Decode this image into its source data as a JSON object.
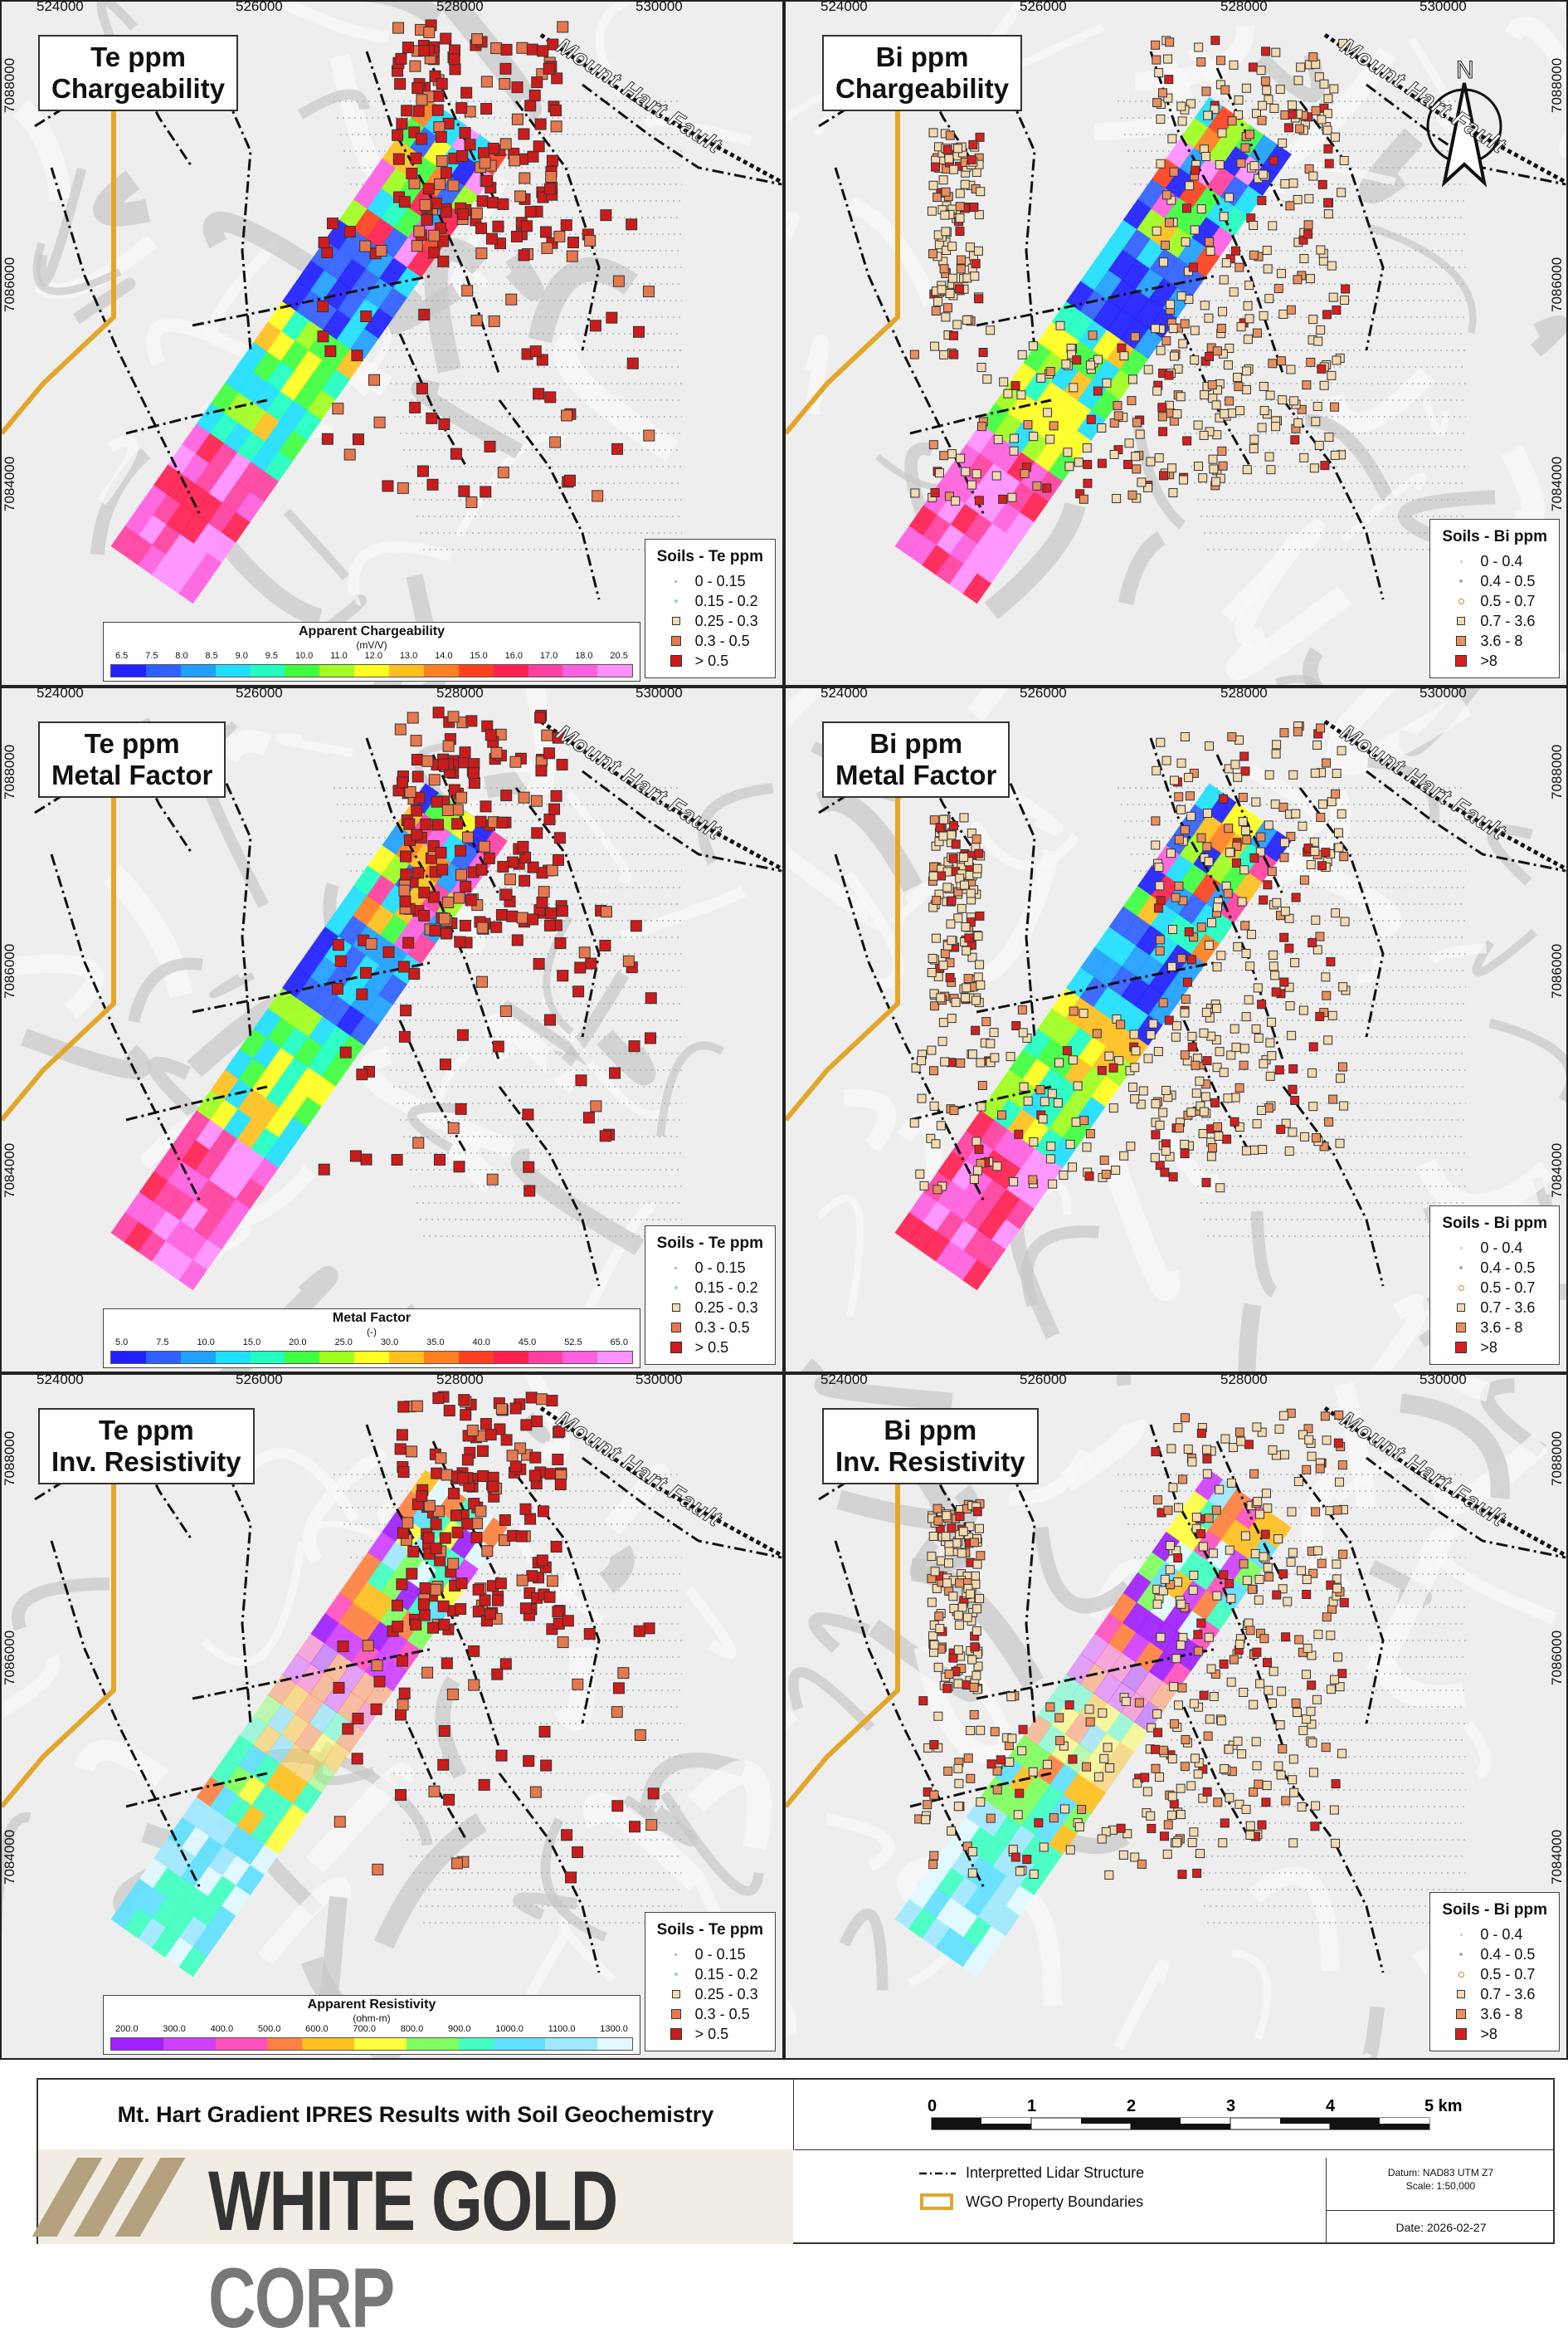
{
  "colors": {
    "accent_gold": "#e2a72a",
    "hillshade": "#dcdcdc",
    "te_dot": "#cc1b1b",
    "bi_dot": "#e8c394"
  },
  "axes": {
    "x_ticks": [
      "524000",
      "526000",
      "528000",
      "530000"
    ],
    "y_ticks": [
      "7088000",
      "7086000",
      "7084000"
    ]
  },
  "fault_label": "Mount Hart Fault",
  "north_label": "N",
  "panels": [
    {
      "title_line1": "Te ppm",
      "title_line2": "Chargeability",
      "element": "Te",
      "legend_title": "Soils - Te ppm",
      "legend_items": [
        "0 - 0.15",
        "0.15 - 0.2",
        "0.25 - 0.3",
        "0.3 - 0.5",
        "> 0.5"
      ],
      "colorbar": {
        "title": "Apparent Chargeability",
        "unit": "(mV/V)",
        "ticks": [
          "6.5",
          "7.5",
          "8.0",
          "8.5",
          "9.0",
          "9.5",
          "10.0",
          "11.0",
          "12.0",
          "13.0",
          "14.0",
          "15.0",
          "16.0",
          "17.0",
          "18.0",
          "20.5"
        ]
      }
    },
    {
      "title_line1": "Bi ppm",
      "title_line2": "Chargeability",
      "element": "Bi",
      "legend_title": "Soils - Bi ppm",
      "legend_items": [
        "0 - 0.4",
        "0.4 - 0.5",
        "0.5 - 0.7",
        "0.7 - 3.6",
        "3.6 - 8",
        ">8"
      ]
    },
    {
      "title_line1": "Te ppm",
      "title_line2": "Metal Factor",
      "element": "Te",
      "legend_title": "Soils - Te ppm",
      "legend_items": [
        "0 - 0.15",
        "0.15 - 0.2",
        "0.25 - 0.3",
        "0.3 - 0.5",
        "> 0.5"
      ],
      "colorbar": {
        "title": "Metal Factor",
        "unit": "(-)",
        "ticks": [
          "5.0",
          "7.5",
          "10.0",
          "15.0",
          "20.0",
          "25.0",
          "30.0",
          "35.0",
          "40.0",
          "45.0",
          "52.5",
          "65.0"
        ]
      }
    },
    {
      "title_line1": "Bi ppm",
      "title_line2": "Metal Factor",
      "element": "Bi",
      "legend_title": "Soils - Bi ppm",
      "legend_items": [
        "0 - 0.4",
        "0.4 - 0.5",
        "0.5 - 0.7",
        "0.7 - 3.6",
        "3.6 - 8",
        ">8"
      ]
    },
    {
      "title_line1": "Te ppm",
      "title_line2": "Inv. Resistivity",
      "element": "Te",
      "legend_title": "Soils - Te ppm",
      "legend_items": [
        "0 - 0.15",
        "0.15 - 0.2",
        "0.25 - 0.3",
        "0.3 - 0.5",
        "> 0.5"
      ],
      "colorbar": {
        "title": "Apparent Resistivity",
        "unit": "(ohm-m)",
        "ticks": [
          "200.0",
          "300.0",
          "400.0",
          "500.0",
          "600.0",
          "700.0",
          "800.0",
          "900.0",
          "1000.0",
          "1100.0",
          "1300.0"
        ]
      }
    },
    {
      "title_line1": "Bi ppm",
      "title_line2": "Inv. Resistivity",
      "element": "Bi",
      "legend_title": "Soils - Bi ppm",
      "legend_items": [
        "0 - 0.4",
        "0.4 - 0.5",
        "0.5 - 0.7",
        "0.7 - 3.6",
        "3.6 - 8",
        ">8"
      ]
    }
  ],
  "footer": {
    "title": "Mt. Hart Gradient IPRES Results with Soil Geochemistry",
    "company_main": "WHITE GOLD ",
    "company_end": "CORP",
    "scale_labels": [
      "0",
      "1",
      "2",
      "3",
      "4",
      "5 km"
    ],
    "legend_lidar": "Interpretted Lidar Structure",
    "legend_property": "WGO Property Boundaries",
    "datum": "Datum: NAD83 UTM Z7",
    "scale": "Scale: 1:50,000",
    "date": "Date: 2026-02-27"
  }
}
